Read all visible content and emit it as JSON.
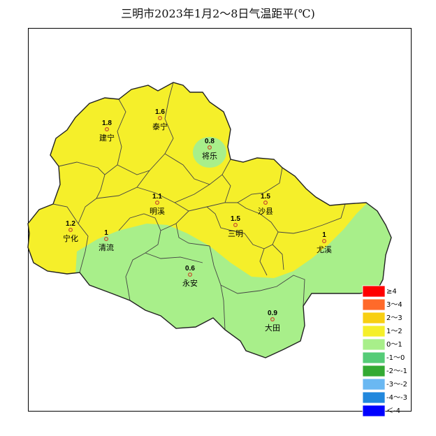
{
  "title": "三明市2023年1月2～8日气温距平(℃)",
  "colors": {
    "yellow": "#f5ef2a",
    "green": "#a8ef8a",
    "border": "#444444",
    "outline": "#222222",
    "station": "#c84b2c"
  },
  "stations": [
    {
      "name": "建宁",
      "value": "1.8"
    },
    {
      "name": "泰宁",
      "value": "1.6"
    },
    {
      "name": "将乐",
      "value": "0.8"
    },
    {
      "name": "明溪",
      "value": "1.1"
    },
    {
      "name": "沙县",
      "value": "1.5"
    },
    {
      "name": "三明",
      "value": "1.5"
    },
    {
      "name": "宁化",
      "value": "1.2"
    },
    {
      "name": "清流",
      "value": "1"
    },
    {
      "name": "尤溪",
      "value": "1"
    },
    {
      "name": "永安",
      "value": "0.6"
    },
    {
      "name": "大田",
      "value": "0.9"
    }
  ],
  "legend": [
    {
      "label": "≥4",
      "color": "#ff0000"
    },
    {
      "label": "3～4",
      "color": "#ff6a2a"
    },
    {
      "label": "2～3",
      "color": "#f8cf12"
    },
    {
      "label": "1～2",
      "color": "#f5ef2a"
    },
    {
      "label": "0～1",
      "color": "#a8ef8a"
    },
    {
      "label": "-1～0",
      "color": "#55cc77"
    },
    {
      "label": "-2～-1",
      "color": "#33aa33"
    },
    {
      "label": "-3～-2",
      "color": "#6ab8f2"
    },
    {
      "label": "-4～-3",
      "color": "#2288dd"
    },
    {
      "label": "＜-4",
      "color": "#0000ff"
    }
  ]
}
